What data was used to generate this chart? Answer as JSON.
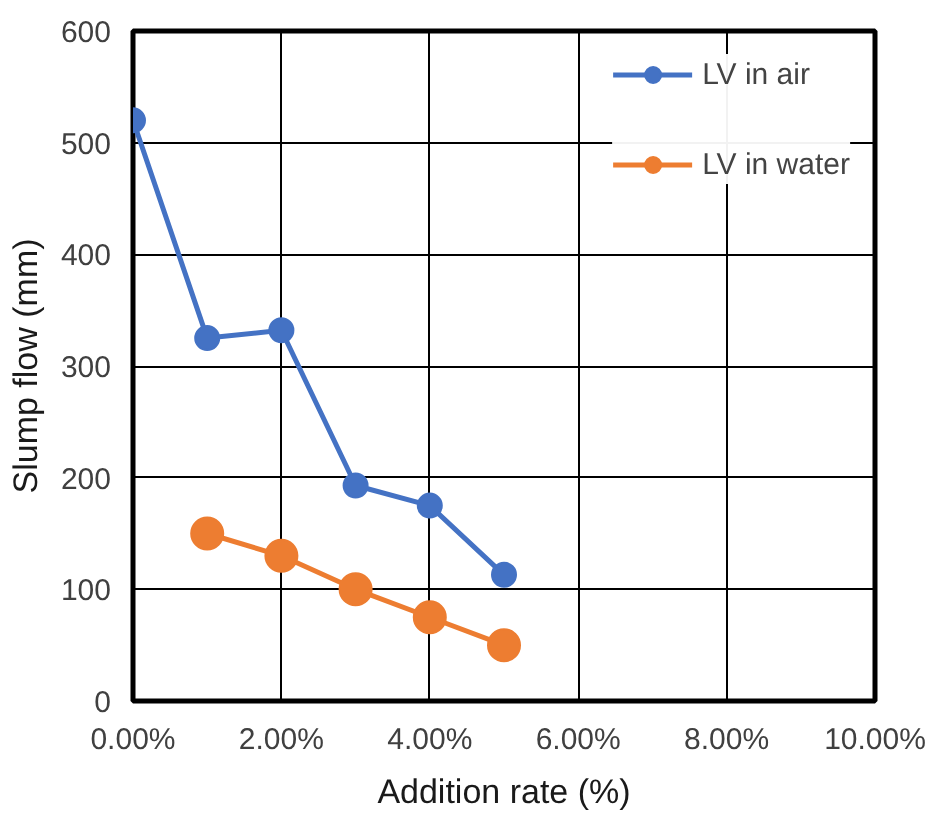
{
  "chart_data": {
    "type": "line",
    "xlabel": "Addition rate (%)",
    "ylabel": "Slump flow (mm)",
    "xlim": [
      0,
      10
    ],
    "ylim": [
      0,
      600
    ],
    "xticks": [
      {
        "value": 0,
        "label": "0.00%"
      },
      {
        "value": 2,
        "label": "2.00%"
      },
      {
        "value": 4,
        "label": "4.00%"
      },
      {
        "value": 6,
        "label": "6.00%"
      },
      {
        "value": 8,
        "label": "8.00%"
      },
      {
        "value": 10,
        "label": "10.00%"
      }
    ],
    "yticks": [
      0,
      100,
      200,
      300,
      400,
      500,
      600
    ],
    "grid": true,
    "legend": "top right",
    "marker": "circle",
    "line_style": "solid",
    "series": [
      {
        "name": "LV in air",
        "color": "#4472c4",
        "x": [
          0,
          1,
          2,
          3,
          4,
          5
        ],
        "values": [
          520,
          325,
          332,
          193,
          175,
          113
        ]
      },
      {
        "name": "LV in water",
        "color": "#ed7d31",
        "x": [
          1,
          2,
          3,
          4,
          5
        ],
        "values": [
          150,
          130,
          100,
          75,
          50
        ]
      }
    ]
  }
}
